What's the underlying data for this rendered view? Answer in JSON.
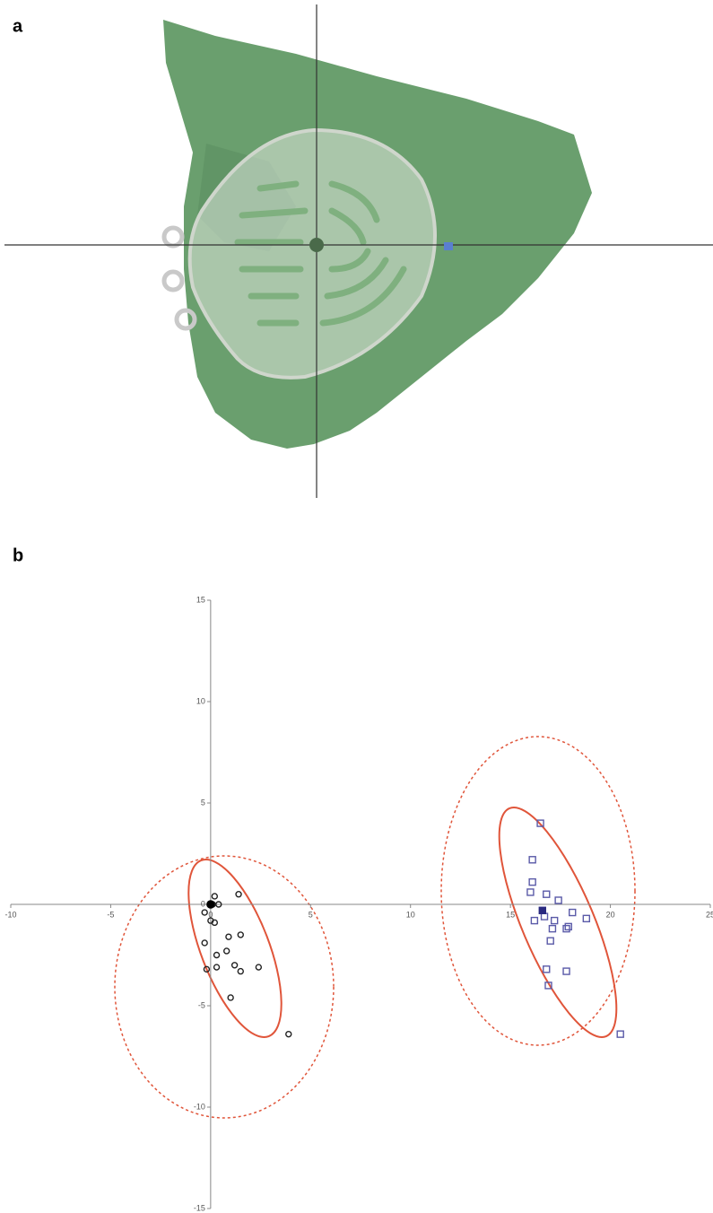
{
  "panel_labels": [
    "a",
    "b"
  ],
  "chart_data": {
    "type": "scatter",
    "xlim": [
      -10,
      25
    ],
    "ylim": [
      -15,
      15
    ],
    "xticks": [
      -10,
      -5,
      0,
      5,
      10,
      15,
      20,
      25
    ],
    "yticks": [
      -15,
      -10,
      -5,
      0,
      5,
      10,
      15
    ],
    "series": [
      {
        "color": "#222222",
        "marker": "circle",
        "filled": false,
        "x": [
          0.1,
          0.2,
          0.4,
          1.4,
          -0.3,
          0,
          0.2,
          -0.3,
          0.9,
          1.5,
          0.3,
          0.8,
          1.2,
          0.3,
          -0.2,
          1.5,
          2.4,
          1.0,
          3.9
        ],
        "values": [
          0,
          0.4,
          0,
          0.5,
          -0.4,
          -0.8,
          -0.9,
          -1.9,
          -1.6,
          -1.5,
          -2.5,
          -2.3,
          -3.0,
          -3.1,
          -3.2,
          -3.3,
          -3.1,
          -4.6,
          -6.4
        ]
      },
      {
        "color": "#000000",
        "marker": "circle",
        "filled": true,
        "x": [
          0
        ],
        "values": [
          0
        ]
      },
      {
        "color": "#5a5aa8",
        "marker": "square",
        "filled": false,
        "x": [
          16.5,
          16.1,
          16.1,
          16.0,
          16.8,
          17.4,
          16.2,
          16.7,
          17.2,
          18.1,
          18.8,
          17.1,
          17.8,
          17.9,
          17.0,
          16.8,
          17.8,
          16.9,
          20.5
        ],
        "values": [
          4.0,
          2.2,
          1.1,
          0.6,
          0.5,
          0.2,
          -0.8,
          -0.6,
          -0.8,
          -0.4,
          -0.7,
          -1.2,
          -1.2,
          -1.1,
          -1.8,
          -3.2,
          -3.3,
          -4.0,
          -6.4
        ]
      },
      {
        "color": "#2a2a80",
        "marker": "square",
        "filled": true,
        "x": [
          16.6
        ],
        "values": [
          -0.3
        ]
      }
    ]
  }
}
